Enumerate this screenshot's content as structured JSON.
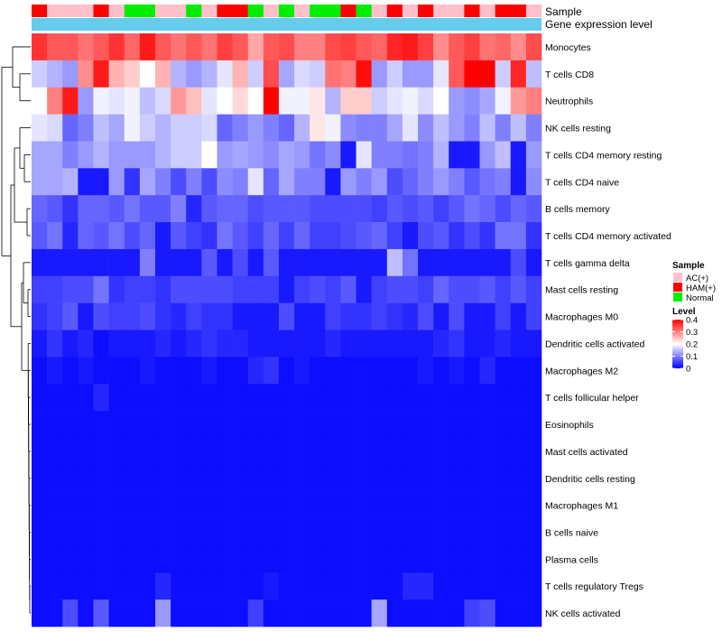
{
  "chart_data": {
    "type": "heatmap",
    "annotations": {
      "sample_label": "Sample",
      "level_label": "Gene expression level",
      "samples": [
        "HAM(+)",
        "AC(+)",
        "AC(+)",
        "AC(+)",
        "HAM(+)",
        "AC(+)",
        "Normal",
        "Normal",
        "AC(+)",
        "AC(+)",
        "Normal",
        "AC(+)",
        "HAM(+)",
        "HAM(+)",
        "Normal",
        "AC(+)",
        "Normal",
        "AC(+)",
        "Normal",
        "Normal",
        "HAM(+)",
        "Normal",
        "AC(+)",
        "HAM(+)",
        "AC(+)",
        "HAM(+)",
        "AC(+)",
        "AC(+)",
        "HAM(+)",
        "AC(+)",
        "HAM(+)",
        "HAM(+)",
        "AC(+)"
      ]
    },
    "rows": [
      {
        "name": "Monocytes",
        "values": [
          0.36,
          0.33,
          0.33,
          0.31,
          0.33,
          0.36,
          0.32,
          0.38,
          0.33,
          0.31,
          0.33,
          0.31,
          0.35,
          0.33,
          0.27,
          0.33,
          0.34,
          0.3,
          0.3,
          0.34,
          0.35,
          0.33,
          0.32,
          0.37,
          0.38,
          0.35,
          0.29,
          0.33,
          0.35,
          0.31,
          0.32,
          0.29,
          0.34
        ]
      },
      {
        "name": "T cells CD8",
        "values": [
          0.16,
          0.14,
          0.12,
          0.29,
          0.38,
          0.26,
          0.24,
          0.2,
          0.26,
          0.14,
          0.12,
          0.14,
          0.18,
          0.26,
          0.16,
          0.34,
          0.13,
          0.17,
          0.16,
          0.31,
          0.3,
          0.39,
          0.12,
          0.16,
          0.12,
          0.12,
          0.18,
          0.33,
          0.4,
          0.4,
          0.16,
          0.37,
          0.15
        ]
      },
      {
        "name": "Neutrophils",
        "values": [
          0.2,
          0.3,
          0.38,
          0.12,
          0.19,
          0.18,
          0.19,
          0.15,
          0.17,
          0.28,
          0.25,
          0.18,
          0.2,
          0.23,
          0.2,
          0.4,
          0.19,
          0.19,
          0.22,
          0.14,
          0.24,
          0.24,
          0.16,
          0.18,
          0.19,
          0.17,
          0.2,
          0.12,
          0.11,
          0.13,
          0.19,
          0.28,
          0.3
        ]
      },
      {
        "name": "NK cells resting",
        "values": [
          0.18,
          0.17,
          0.08,
          0.1,
          0.15,
          0.13,
          0.19,
          0.16,
          0.14,
          0.16,
          0.16,
          0.17,
          0.08,
          0.1,
          0.12,
          0.1,
          0.08,
          0.14,
          0.22,
          0.19,
          0.11,
          0.1,
          0.1,
          0.13,
          0.18,
          0.11,
          0.15,
          0.12,
          0.1,
          0.15,
          0.1,
          0.15,
          0.1
        ]
      },
      {
        "name": "T cells CD4 memory resting",
        "values": [
          0.13,
          0.13,
          0.1,
          0.12,
          0.14,
          0.12,
          0.12,
          0.12,
          0.14,
          0.16,
          0.16,
          0.2,
          0.12,
          0.13,
          0.12,
          0.11,
          0.13,
          0.12,
          0.09,
          0.11,
          0.02,
          0.18,
          0.1,
          0.1,
          0.09,
          0.1,
          0.14,
          0.02,
          0.02,
          0.12,
          0.15,
          0.02,
          0.12
        ]
      },
      {
        "name": "T cells CD4 naive",
        "values": [
          0.13,
          0.13,
          0.14,
          0.02,
          0.02,
          0.12,
          0.04,
          0.13,
          0.1,
          0.06,
          0.1,
          0.06,
          0.11,
          0.1,
          0.18,
          0.08,
          0.13,
          0.1,
          0.1,
          0.02,
          0.12,
          0.1,
          0.12,
          0.06,
          0.08,
          0.1,
          0.12,
          0.1,
          0.07,
          0.09,
          0.1,
          0.02,
          0.11
        ]
      },
      {
        "name": "B cells memory",
        "values": [
          0.08,
          0.07,
          0.04,
          0.08,
          0.08,
          0.07,
          0.09,
          0.07,
          0.07,
          0.1,
          0.03,
          0.07,
          0.08,
          0.08,
          0.06,
          0.07,
          0.07,
          0.07,
          0.06,
          0.06,
          0.06,
          0.06,
          0.05,
          0.07,
          0.06,
          0.07,
          0.05,
          0.07,
          0.09,
          0.08,
          0.06,
          0.08,
          0.07
        ]
      },
      {
        "name": "T cells CD4 memory activated",
        "values": [
          0.07,
          0.09,
          0.03,
          0.08,
          0.07,
          0.09,
          0.06,
          0.08,
          0.02,
          0.07,
          0.05,
          0.04,
          0.09,
          0.07,
          0.05,
          0.08,
          0.05,
          0.08,
          0.05,
          0.05,
          0.06,
          0.07,
          0.08,
          0.05,
          0.02,
          0.06,
          0.07,
          0.04,
          0.06,
          0.04,
          0.09,
          0.09,
          0.04
        ]
      },
      {
        "name": "T cells gamma delta",
        "values": [
          0.02,
          0.02,
          0.02,
          0.02,
          0.02,
          0.02,
          0.02,
          0.1,
          0.02,
          0.02,
          0.02,
          0.07,
          0.02,
          0.06,
          0.02,
          0.07,
          0.02,
          0.02,
          0.02,
          0.02,
          0.02,
          0.02,
          0.02,
          0.15,
          0.09,
          0.02,
          0.02,
          0.02,
          0.02,
          0.02,
          0.02,
          0.06,
          0.02
        ]
      },
      {
        "name": "Mast cells resting",
        "values": [
          0.05,
          0.05,
          0.06,
          0.06,
          0.09,
          0.04,
          0.05,
          0.05,
          0.04,
          0.06,
          0.06,
          0.06,
          0.06,
          0.05,
          0.05,
          0.05,
          0.02,
          0.05,
          0.06,
          0.05,
          0.07,
          0.02,
          0.05,
          0.06,
          0.06,
          0.05,
          0.08,
          0.06,
          0.06,
          0.07,
          0.05,
          0.07,
          0.05
        ]
      },
      {
        "name": "Macrophages M0",
        "values": [
          0.04,
          0.05,
          0.07,
          0.02,
          0.06,
          0.05,
          0.05,
          0.06,
          0.04,
          0.03,
          0.05,
          0.04,
          0.04,
          0.02,
          0.02,
          0.02,
          0.06,
          0.02,
          0.02,
          0.05,
          0.04,
          0.04,
          0.05,
          0.04,
          0.03,
          0.06,
          0.02,
          0.06,
          0.02,
          0.02,
          0.05,
          0.02,
          0.05
        ]
      },
      {
        "name": "Dendritic cells activated",
        "values": [
          0.02,
          0.04,
          0.02,
          0.03,
          0.01,
          0.02,
          0.02,
          0.02,
          0.03,
          0.02,
          0.03,
          0.04,
          0.03,
          0.03,
          0.02,
          0.02,
          0.02,
          0.02,
          0.02,
          0.03,
          0.02,
          0.02,
          0.02,
          0.02,
          0.02,
          0.02,
          0.03,
          0.04,
          0.02,
          0.02,
          0.03,
          0.02,
          0.02
        ]
      },
      {
        "name": "Macrophages M2",
        "values": [
          0.01,
          0.02,
          0.01,
          0.02,
          0.01,
          0.01,
          0.01,
          0.02,
          0.01,
          0.01,
          0.01,
          0.02,
          0.01,
          0.01,
          0.03,
          0.04,
          0.01,
          0.02,
          0.01,
          0.01,
          0.01,
          0.01,
          0.01,
          0.01,
          0.01,
          0.02,
          0.01,
          0.02,
          0.01,
          0.03,
          0.01,
          0.01,
          0.01
        ]
      },
      {
        "name": "T cells follicular helper",
        "values": [
          0.01,
          0.01,
          0.01,
          0.01,
          0.03,
          0.01,
          0.01,
          0.01,
          0.01,
          0.01,
          0.01,
          0.01,
          0.01,
          0.01,
          0.01,
          0.01,
          0.01,
          0.01,
          0.01,
          0.01,
          0.01,
          0.01,
          0.01,
          0.01,
          0.01,
          0.01,
          0.01,
          0.01,
          0.01,
          0.01,
          0.01,
          0.01,
          0.01
        ]
      },
      {
        "name": "Eosinophils",
        "values": [
          0.01,
          0.01,
          0.01,
          0.01,
          0.01,
          0.01,
          0.01,
          0.01,
          0.01,
          0.01,
          0.01,
          0.01,
          0.01,
          0.01,
          0.01,
          0.01,
          0.01,
          0.01,
          0.01,
          0.01,
          0.01,
          0.01,
          0.01,
          0.01,
          0.01,
          0.01,
          0.01,
          0.01,
          0.01,
          0.01,
          0.01,
          0.01,
          0.01
        ]
      },
      {
        "name": "Mast cells activated",
        "values": [
          0.01,
          0.01,
          0.01,
          0.01,
          0.01,
          0.01,
          0.01,
          0.01,
          0.01,
          0.01,
          0.01,
          0.01,
          0.01,
          0.01,
          0.01,
          0.01,
          0.01,
          0.01,
          0.01,
          0.01,
          0.01,
          0.01,
          0.01,
          0.01,
          0.01,
          0.01,
          0.01,
          0.01,
          0.01,
          0.01,
          0.01,
          0.01,
          0.01
        ]
      },
      {
        "name": "Dendritic cells resting",
        "values": [
          0.01,
          0.01,
          0.01,
          0.01,
          0.01,
          0.01,
          0.01,
          0.01,
          0.01,
          0.01,
          0.01,
          0.01,
          0.01,
          0.01,
          0.01,
          0.01,
          0.01,
          0.01,
          0.01,
          0.01,
          0.01,
          0.01,
          0.01,
          0.01,
          0.01,
          0.01,
          0.01,
          0.01,
          0.01,
          0.01,
          0.01,
          0.01,
          0.01
        ]
      },
      {
        "name": "Macrophages M1",
        "values": [
          0.01,
          0.01,
          0.01,
          0.01,
          0.01,
          0.01,
          0.01,
          0.01,
          0.01,
          0.01,
          0.01,
          0.01,
          0.01,
          0.01,
          0.01,
          0.01,
          0.01,
          0.01,
          0.01,
          0.01,
          0.01,
          0.01,
          0.01,
          0.01,
          0.01,
          0.01,
          0.01,
          0.01,
          0.01,
          0.01,
          0.01,
          0.01,
          0.01
        ]
      },
      {
        "name": "B cells naive",
        "values": [
          0.01,
          0.01,
          0.01,
          0.01,
          0.01,
          0.01,
          0.01,
          0.01,
          0.01,
          0.01,
          0.01,
          0.01,
          0.01,
          0.01,
          0.01,
          0.01,
          0.01,
          0.01,
          0.01,
          0.01,
          0.01,
          0.01,
          0.01,
          0.01,
          0.01,
          0.01,
          0.01,
          0.01,
          0.01,
          0.01,
          0.01,
          0.01,
          0.01
        ]
      },
      {
        "name": "Plasma cells",
        "values": [
          0.01,
          0.01,
          0.01,
          0.01,
          0.01,
          0.01,
          0.01,
          0.01,
          0.01,
          0.01,
          0.01,
          0.01,
          0.01,
          0.01,
          0.01,
          0.01,
          0.01,
          0.01,
          0.01,
          0.01,
          0.01,
          0.01,
          0.01,
          0.01,
          0.01,
          0.01,
          0.01,
          0.01,
          0.01,
          0.01,
          0.01,
          0.01,
          0.01
        ]
      },
      {
        "name": "T cells regulatory  Tregs",
        "values": [
          0.01,
          0.01,
          0.01,
          0.01,
          0.01,
          0.01,
          0.01,
          0.01,
          0.03,
          0.01,
          0.01,
          0.01,
          0.01,
          0.01,
          0.01,
          0.02,
          0.01,
          0.01,
          0.01,
          0.01,
          0.01,
          0.01,
          0.01,
          0.01,
          0.03,
          0.03,
          0.01,
          0.01,
          0.01,
          0.01,
          0.01,
          0.01,
          0.01
        ]
      },
      {
        "name": "NK cells activated",
        "values": [
          0.01,
          0.01,
          0.06,
          0.01,
          0.07,
          0.01,
          0.01,
          0.01,
          0.12,
          0.01,
          0.01,
          0.01,
          0.01,
          0.01,
          0.05,
          0.01,
          0.01,
          0.01,
          0.01,
          0.01,
          0.01,
          0.01,
          0.13,
          0.01,
          0.01,
          0.01,
          0.01,
          0.01,
          0.05,
          0.06,
          0.01,
          0.01,
          0.01
        ]
      }
    ],
    "row_dendrogram_order": [
      "Monocytes",
      "T cells CD8",
      "Neutrophils",
      "NK cells resting",
      "T cells CD4 memory resting",
      "T cells CD4 naive",
      "B cells memory",
      "T cells CD4 memory activated",
      "T cells gamma delta",
      "Mast cells resting",
      "Macrophages M0",
      "Dendritic cells activated",
      "Macrophages M2",
      "T cells follicular helper",
      "Eosinophils",
      "Mast cells activated",
      "Dendritic cells resting",
      "Macrophages M1",
      "B cells naive",
      "Plasma cells",
      "T cells regulatory  Tregs",
      "NK cells activated"
    ],
    "legend": {
      "sample_title": "Sample",
      "sample_entries": [
        {
          "label": "AC(+)",
          "color": "#ffc0cb"
        },
        {
          "label": "HAM(+)",
          "color": "#ff0000"
        },
        {
          "label": "Normal",
          "color": "#00ee00"
        }
      ],
      "level_title": "Level",
      "level_ticks": [
        "0.4",
        "0.3",
        "0.2",
        "0.1",
        "0"
      ],
      "scale_min": 0,
      "scale_max": 0.4
    },
    "colors": {
      "low": "#0000ff",
      "mid": "#ffffff",
      "high": "#ff0000",
      "gene_expression_bar": "#66ccee"
    }
  }
}
